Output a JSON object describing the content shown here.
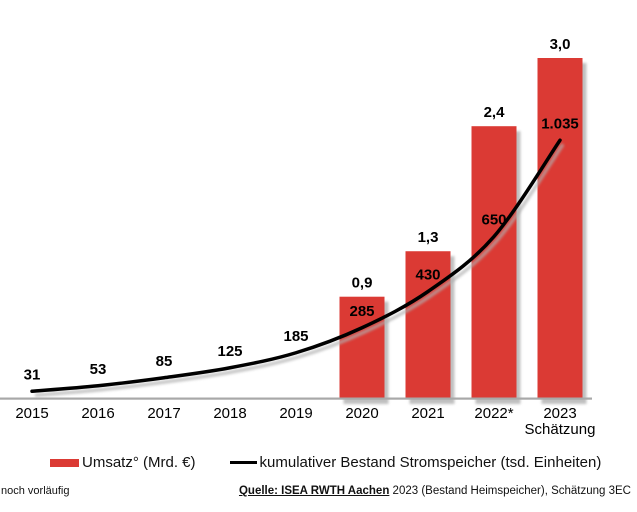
{
  "chart_data": {
    "type": "bar+line",
    "title": "",
    "categories": [
      "2015",
      "2016",
      "2017",
      "2018",
      "2019",
      "2020",
      "2021",
      "2022*",
      "2023"
    ],
    "category_sublabels": [
      "",
      "",
      "",
      "",
      "",
      "",
      "",
      "",
      "Schätzung"
    ],
    "series": [
      {
        "name": "Umsatz° (Mrd. €)",
        "type": "bar",
        "color": "#db3a34",
        "values": [
          null,
          null,
          null,
          null,
          null,
          0.9,
          1.3,
          2.4,
          3.0
        ],
        "labels": [
          "",
          "",
          "",
          "",
          "",
          "0,9",
          "1,3",
          "2,4",
          "3,0"
        ]
      },
      {
        "name": "kumulativer Bestand Stromspeicher (tsd. Einheiten)",
        "type": "line",
        "color": "#000000",
        "values": [
          31,
          53,
          85,
          125,
          185,
          285,
          430,
          650,
          1035
        ],
        "labels": [
          "31",
          "53",
          "85",
          "125",
          "185",
          "285",
          "430",
          "650",
          "1.035"
        ]
      }
    ],
    "bar_axis": {
      "min": 0,
      "max": 3.0
    },
    "line_axis": {
      "min": 0,
      "max": 1040
    },
    "grid": false,
    "legend_position": "bottom",
    "data_label_color": "#000000",
    "axis_line_color": "#a8a8a8"
  },
  "legend": {
    "bar_label": "Umsatz° (Mrd. €)",
    "line_label": "kumulativer Bestand Stromspeicher (tsd. Einheiten)"
  },
  "footer": {
    "footnote": "noch vorläufig",
    "source_link": "Quelle: ISEA RWTH Aachen",
    "source_rest": " 2023 (Bestand Heimspeicher), Schätzung 3EC"
  }
}
